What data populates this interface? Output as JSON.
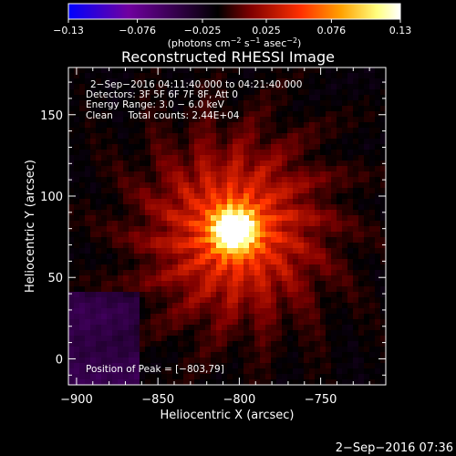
{
  "chart_data": {
    "type": "heatmap",
    "title": "Reconstructed RHESSI Image",
    "xlabel": "Heliocentric X (arcsec)",
    "ylabel": "Heliocentric Y (arcsec)",
    "xlim": [
      -905,
      -710
    ],
    "ylim": [
      -16,
      179
    ],
    "xticks": [
      -900,
      -850,
      -800,
      -750
    ],
    "xtick_labels": [
      "−900",
      "−850",
      "−800",
      "−750"
    ],
    "yticks": [
      0,
      50,
      100,
      150
    ],
    "ytick_labels": [
      "0",
      "50",
      "100",
      "150"
    ],
    "colorbar": {
      "range": [
        -0.13,
        0.13
      ],
      "ticks": [
        -0.13,
        -0.076,
        -0.025,
        0.025,
        0.076,
        0.13
      ],
      "tick_labels": [
        "−0.13",
        "−0.076",
        "−0.025",
        "0.025",
        "0.076",
        "0.13"
      ],
      "units_prefix": "(photons cm",
      "units_exp1": "−2",
      "units_mid": " s",
      "units_exp2": "−1",
      "units_mid2": " asec",
      "units_exp3": "−2",
      "units_suffix": ")",
      "colors": [
        "#0000ff",
        "#7000a0",
        "#000000",
        "#800000",
        "#ff3000",
        "#ffa000",
        "#ffff80",
        "#ffffff"
      ]
    },
    "peak": {
      "x": -803,
      "y": 79,
      "value": 0.13
    },
    "background_level": -0.02,
    "annotations": [
      "2−Sep−2016 04:11:40.000 to 04:21:40.000",
      "Detectors: 3F 5F 6F 7F 8F, Att 0",
      "Energy Range: 3.0 − 6.0 keV",
      "Clean     Total counts: 2.44E+04"
    ],
    "peak_label": "Position of Peak = [−803,79]"
  },
  "footer_timestamp": "2−Sep−2016 07:36"
}
